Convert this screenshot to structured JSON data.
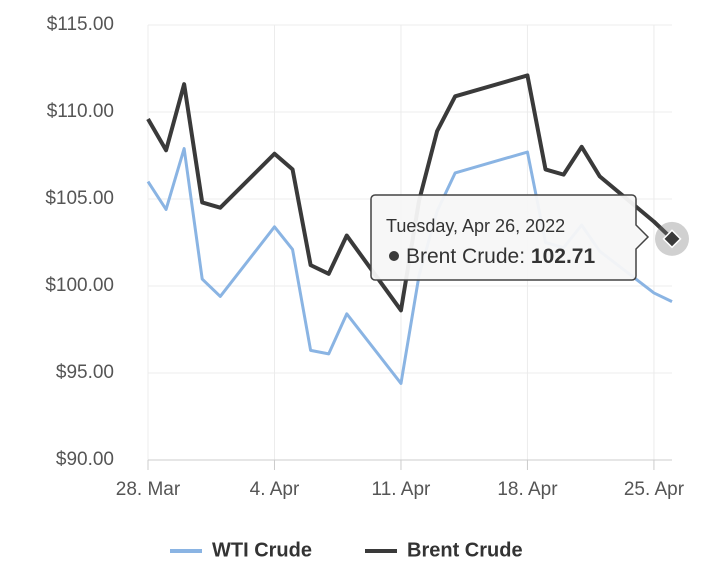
{
  "chart_data": {
    "type": "line",
    "x": [
      "2022-03-28",
      "2022-03-29",
      "2022-03-30",
      "2022-03-31",
      "2022-04-01",
      "2022-04-04",
      "2022-04-05",
      "2022-04-06",
      "2022-04-07",
      "2022-04-08",
      "2022-04-11",
      "2022-04-12",
      "2022-04-13",
      "2022-04-14",
      "2022-04-18",
      "2022-04-19",
      "2022-04-20",
      "2022-04-21",
      "2022-04-22",
      "2022-04-25",
      "2022-04-26"
    ],
    "series": [
      {
        "name": "WTI Crude",
        "color": "#8ab4e3",
        "values": [
          106.0,
          104.4,
          107.9,
          100.4,
          99.4,
          103.4,
          102.1,
          96.3,
          96.1,
          98.4,
          94.4,
          100.6,
          104.3,
          106.5,
          107.7,
          102.5,
          102.2,
          103.5,
          102.0,
          99.6,
          99.1
        ]
      },
      {
        "name": "Brent Crude",
        "color": "#3a3a3a",
        "values": [
          109.6,
          107.8,
          111.6,
          104.8,
          104.5,
          107.6,
          106.7,
          101.2,
          100.7,
          102.9,
          98.6,
          104.9,
          108.9,
          110.9,
          112.1,
          106.7,
          106.4,
          108.0,
          106.3,
          103.7,
          102.71
        ]
      }
    ],
    "xlim": [
      "2022-03-28",
      "2022-04-26"
    ],
    "xticks": [
      {
        "value": "2022-03-28",
        "label": "28. Mar"
      },
      {
        "value": "2022-04-04",
        "label": "4. Apr"
      },
      {
        "value": "2022-04-11",
        "label": "11. Apr"
      },
      {
        "value": "2022-04-18",
        "label": "18. Apr"
      },
      {
        "value": "2022-04-25",
        "label": "25. Apr"
      }
    ],
    "ylim": [
      90,
      115
    ],
    "yticks": [
      {
        "value": 90,
        "label": "$90.00"
      },
      {
        "value": 95,
        "label": "$95.00"
      },
      {
        "value": 100,
        "label": "$100.00"
      },
      {
        "value": 105,
        "label": "$105.00"
      },
      {
        "value": 110,
        "label": "$110.00"
      },
      {
        "value": 115,
        "label": "$115.00"
      }
    ],
    "grid": true,
    "legend": "bottom",
    "tooltip": {
      "date": "Tuesday, Apr 26, 2022",
      "series": 1,
      "index": 20
    }
  }
}
